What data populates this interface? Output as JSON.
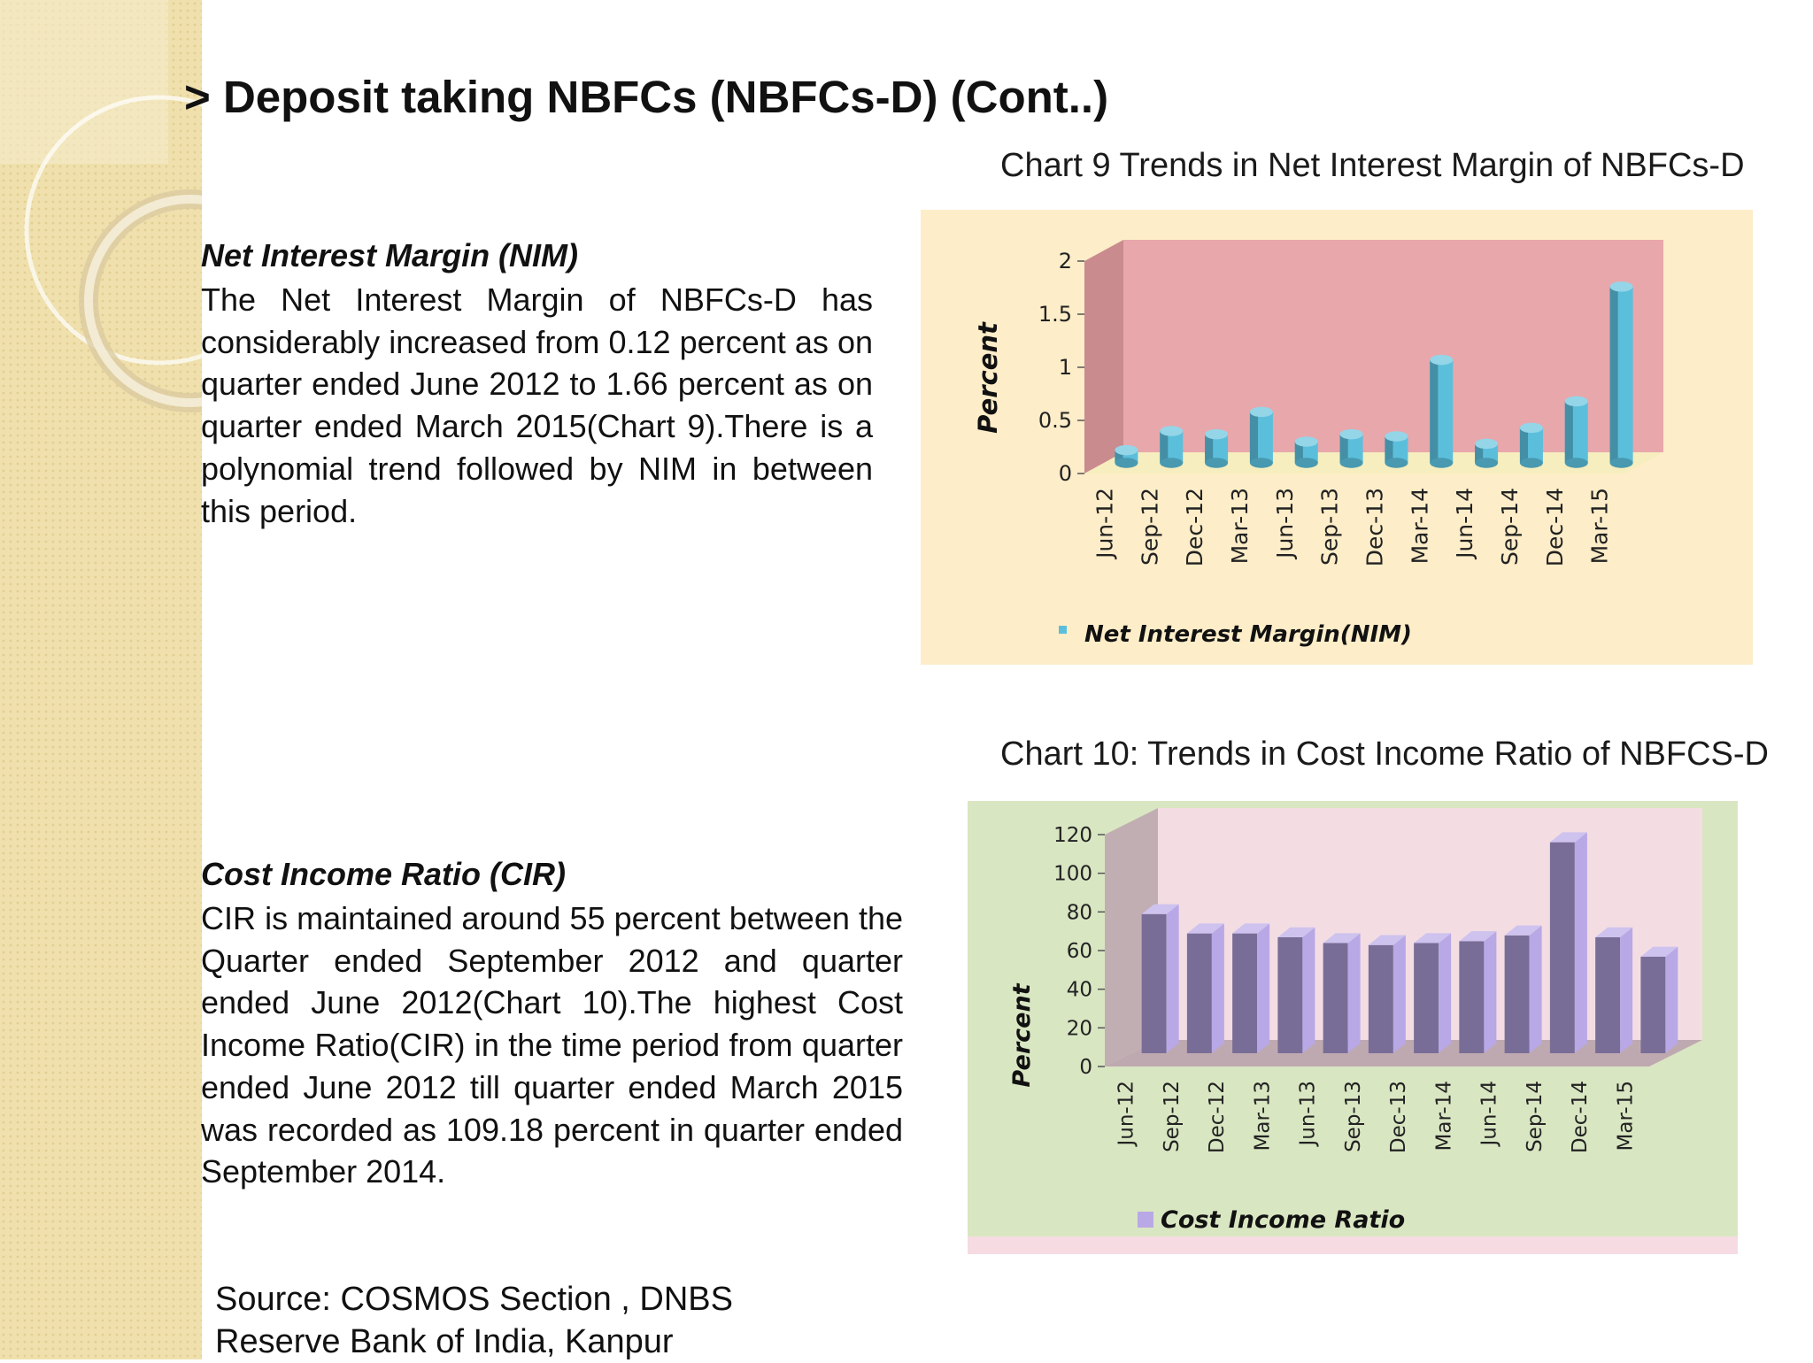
{
  "slide": {
    "title": "> Deposit taking NBFCs (NBFCs-D) (Cont..)"
  },
  "nim_section": {
    "heading": "Net Interest Margin (NIM)",
    "body": "The Net Interest Margin of NBFCs-D has considerably increased from 0.12 percent as on quarter ended June 2012 to 1.66 percent as on quarter ended March 2015(Chart 9).There is a polynomial trend followed by NIM in between this period."
  },
  "cir_section": {
    "heading": "Cost Income Ratio (CIR)",
    "body": "CIR is maintained around 55 percent between the Quarter ended September 2012 and quarter ended June 2012(Chart 10).The highest Cost Income Ratio(CIR) in the time period from quarter ended June 2012 till quarter ended March 2015 was recorded as 109.18 percent in quarter ended September 2014."
  },
  "source": {
    "line1": "Source: COSMOS Section , DNBS",
    "line2": "Reserve Bank of India, Kanpur"
  },
  "colors": {
    "nim_bar": "#5bbfdc",
    "nim_wall": "#e8a7ab",
    "nim_panel": "#fdedc8",
    "cir_bar": "#b9a8e6",
    "cir_wall": "#f3dde3",
    "cir_panel": "#d9e6c2"
  },
  "chart_data": [
    {
      "type": "bar",
      "title": "Chart 9 Trends in Net Interest Margin of NBFCs-D",
      "ylabel": "Percent",
      "xlabel": "",
      "categories": [
        "Jun-12",
        "Sep-12",
        "Dec-12",
        "Mar-13",
        "Jun-13",
        "Sep-13",
        "Dec-13",
        "Mar-14",
        "Jun-14",
        "Sep-14",
        "Dec-14",
        "Mar-15"
      ],
      "series": [
        {
          "name": "Net Interest Margin(NIM)",
          "values": [
            0.12,
            0.3,
            0.27,
            0.48,
            0.2,
            0.27,
            0.25,
            0.97,
            0.18,
            0.33,
            0.58,
            1.66
          ]
        }
      ],
      "ylim": [
        0,
        2
      ],
      "yticks": [
        "0",
        "0.5",
        "1",
        "1.5",
        "2"
      ],
      "legend": "bottom"
    },
    {
      "type": "bar",
      "title": "Chart 10: Trends in Cost Income Ratio of NBFCS-D",
      "ylabel": "Percent",
      "xlabel": "",
      "categories": [
        "Jun-12",
        "Sep-12",
        "Dec-12",
        "Mar-13",
        "Jun-13",
        "Sep-13",
        "Dec-13",
        "Mar-14",
        "Jun-14",
        "Sep-14",
        "Dec-14",
        "Mar-15"
      ],
      "series": [
        {
          "name": "Cost Income Ratio",
          "values": [
            72,
            62,
            62,
            60,
            57,
            56,
            57,
            58,
            61,
            109.18,
            60,
            50
          ]
        }
      ],
      "ylim": [
        0,
        120
      ],
      "yticks": [
        "0",
        "20",
        "40",
        "60",
        "80",
        "100",
        "120"
      ],
      "legend": "bottom"
    }
  ]
}
